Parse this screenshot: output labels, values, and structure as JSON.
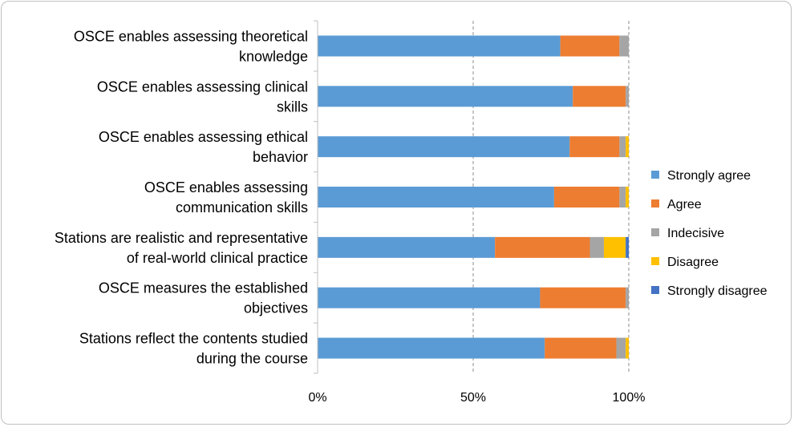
{
  "chart_data": {
    "type": "bar",
    "orientation": "horizontal",
    "stacked": "percent",
    "categories": [
      "OSCE enables assessing theoretical knowledge",
      "OSCE enables assessing clinical skills",
      "OSCE enables assessing ethical behavior",
      "OSCE enables assessing communication skills",
      "Stations are realistic and representative of real-world clinical practice",
      "OSCE measures the established objectives",
      "Stations reflect the contents studied during the course"
    ],
    "category_lines": [
      [
        "OSCE enables assessing theoretical",
        "knowledge"
      ],
      [
        "OSCE enables assessing clinical",
        "skills"
      ],
      [
        "OSCE enables assessing ethical",
        "behavior"
      ],
      [
        "OSCE enables assessing",
        "communication skills"
      ],
      [
        "Stations are realistic and representative",
        "of real-world clinical practice"
      ],
      [
        "OSCE measures the established",
        "objectives"
      ],
      [
        "Stations reflect the contents studied",
        "during the course"
      ]
    ],
    "series": [
      {
        "name": "Strongly agree",
        "color": "#5B9BD5",
        "values": [
          78,
          82,
          81,
          76,
          57,
          71.5,
          73
        ]
      },
      {
        "name": "Agree",
        "color": "#ED7D31",
        "values": [
          19,
          17,
          16,
          21,
          30.5,
          27.5,
          23
        ]
      },
      {
        "name": "Indecisive",
        "color": "#A5A5A5",
        "values": [
          3,
          1,
          2,
          2,
          4.5,
          1,
          3
        ]
      },
      {
        "name": "Disagree",
        "color": "#FFC000",
        "values": [
          0,
          0,
          1,
          1,
          7,
          0,
          1
        ]
      },
      {
        "name": "Strongly disagree",
        "color": "#4472C4",
        "values": [
          0,
          0,
          0,
          0,
          1,
          0,
          0
        ]
      }
    ],
    "xlim": [
      0,
      100
    ],
    "xticks": [
      0,
      50,
      100
    ],
    "xtick_labels": [
      "0%",
      "50%",
      "100%"
    ],
    "grid": "vertical dashed",
    "legend_position": "right"
  }
}
